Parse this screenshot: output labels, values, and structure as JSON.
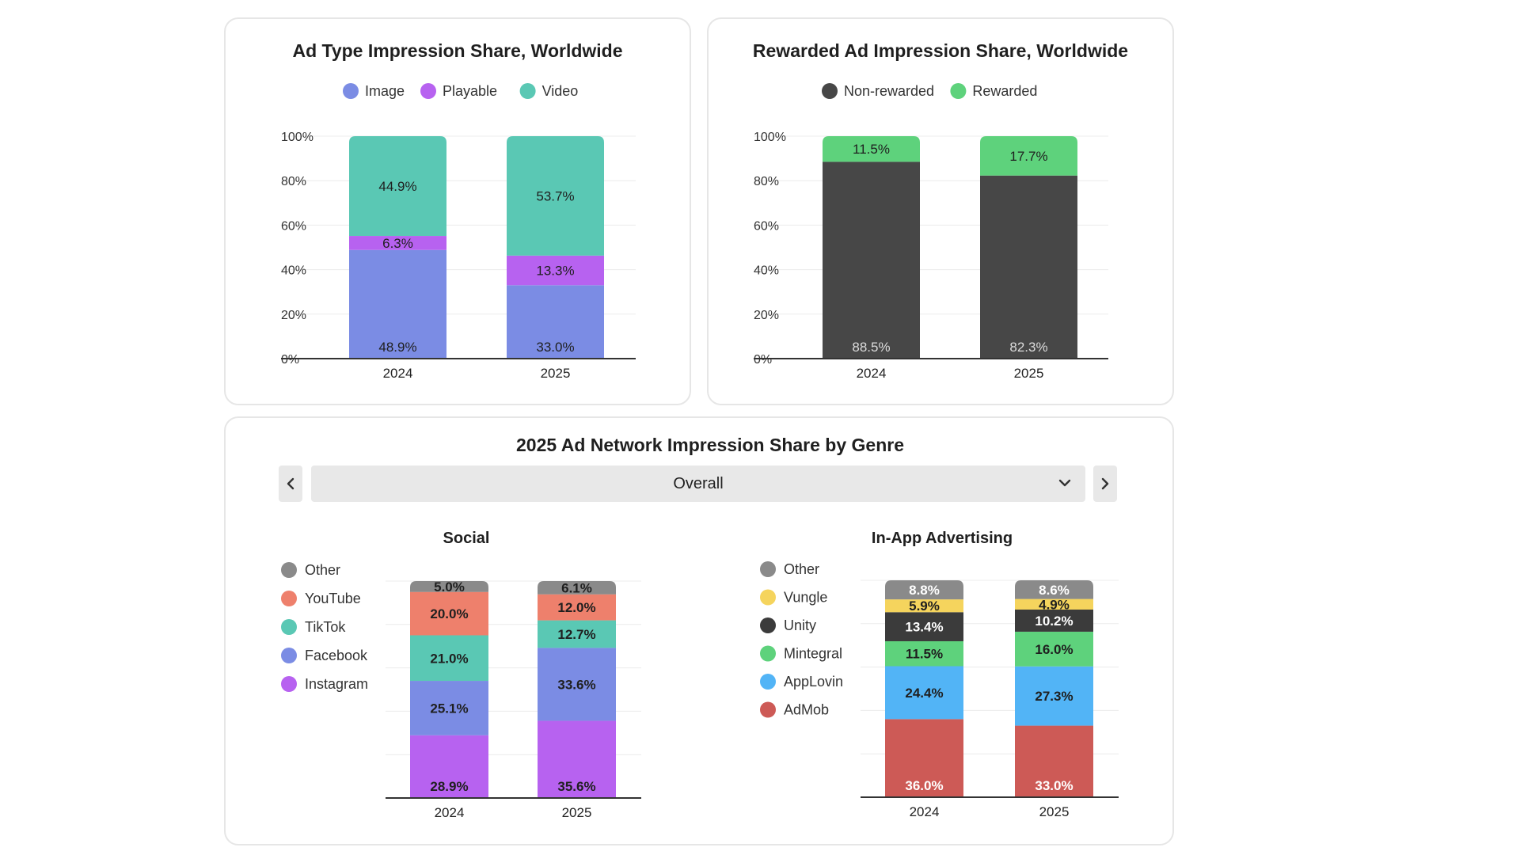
{
  "colors": {
    "image": "#7b8ce4",
    "playable": "#b762f0",
    "video": "#5ac8b4",
    "nonrewarded": "#474747",
    "rewarded": "#5ed27c",
    "other": "#8a8a8a",
    "youtube": "#ee806c",
    "tiktok": "#5ac8b4",
    "facebook": "#7b8ce4",
    "instagram": "#b762f0",
    "vungle": "#f5d45d",
    "unity": "#3b3b3b",
    "mintegral": "#5ed27c",
    "applovin": "#52b4f6",
    "admob": "#cd5a56"
  },
  "genre_selector": {
    "selected": "Overall"
  },
  "network_section": {
    "title": "2025 Ad Network Impression Share by Genre"
  },
  "chart_data": [
    {
      "type": "bar",
      "stacked": true,
      "title": "Ad Type Impression Share, Worldwide",
      "categories": [
        "2024",
        "2025"
      ],
      "series": [
        {
          "name": "Image",
          "values": [
            48.9,
            33.0
          ],
          "labels": [
            "48.9%",
            "33.0%"
          ]
        },
        {
          "name": "Playable",
          "values": [
            6.3,
            13.3
          ],
          "labels": [
            "6.3%",
            "13.3%"
          ]
        },
        {
          "name": "Video",
          "values": [
            44.9,
            53.7
          ],
          "labels": [
            "44.9%",
            "53.7%"
          ]
        }
      ],
      "yticks": [
        "0%",
        "20%",
        "40%",
        "60%",
        "80%",
        "100%"
      ],
      "ylim": [
        0,
        100
      ],
      "legend": "top"
    },
    {
      "type": "bar",
      "stacked": true,
      "title": "Rewarded Ad Impression Share, Worldwide",
      "categories": [
        "2024",
        "2025"
      ],
      "series": [
        {
          "name": "Non-rewarded",
          "values": [
            88.5,
            82.3
          ],
          "labels": [
            "88.5%",
            "82.3%"
          ]
        },
        {
          "name": "Rewarded",
          "values": [
            11.5,
            17.7
          ],
          "labels": [
            "11.5%",
            "17.7%"
          ]
        }
      ],
      "yticks": [
        "0%",
        "20%",
        "40%",
        "60%",
        "80%",
        "100%"
      ],
      "ylim": [
        0,
        100
      ],
      "legend": "top"
    },
    {
      "type": "bar",
      "stacked": true,
      "title": "Social",
      "categories": [
        "2024",
        "2025"
      ],
      "series": [
        {
          "name": "Instagram",
          "values": [
            28.9,
            35.6
          ],
          "labels": [
            "28.9%",
            "35.6%"
          ]
        },
        {
          "name": "Facebook",
          "values": [
            25.1,
            33.6
          ],
          "labels": [
            "25.1%",
            "33.6%"
          ]
        },
        {
          "name": "TikTok",
          "values": [
            21.0,
            12.7
          ],
          "labels": [
            "21.0%",
            "12.7%"
          ]
        },
        {
          "name": "YouTube",
          "values": [
            20.0,
            12.0
          ],
          "labels": [
            "20.0%",
            "12.0%"
          ]
        },
        {
          "name": "Other",
          "values": [
            5.0,
            6.1
          ],
          "labels": [
            "5.0%",
            "6.1%"
          ]
        }
      ],
      "ylim": [
        0,
        100
      ],
      "legend": "left"
    },
    {
      "type": "bar",
      "stacked": true,
      "title": "In-App Advertising",
      "categories": [
        "2024",
        "2025"
      ],
      "series": [
        {
          "name": "AdMob",
          "values": [
            36.0,
            33.0
          ],
          "labels": [
            "36.0%",
            "33.0%"
          ]
        },
        {
          "name": "AppLovin",
          "values": [
            24.4,
            27.3
          ],
          "labels": [
            "24.4%",
            "27.3%"
          ]
        },
        {
          "name": "Mintegral",
          "values": [
            11.5,
            16.0
          ],
          "labels": [
            "11.5%",
            "16.0%"
          ]
        },
        {
          "name": "Unity",
          "values": [
            13.4,
            10.2
          ],
          "labels": [
            "13.4%",
            "10.2%"
          ]
        },
        {
          "name": "Vungle",
          "values": [
            5.9,
            4.9
          ],
          "labels": [
            "5.9%",
            "4.9%"
          ]
        },
        {
          "name": "Other",
          "values": [
            8.8,
            8.6
          ],
          "labels": [
            "8.8%",
            "8.6%"
          ]
        }
      ],
      "ylim": [
        0,
        100
      ],
      "legend": "left"
    }
  ]
}
